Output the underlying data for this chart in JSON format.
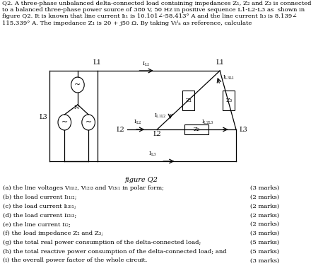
{
  "bg_color": "#ffffff",
  "text_color": "#000000",
  "figure_label": "figure Q2",
  "title_line1": "Q2. A three-phase unbalanced delta-connected load containing impedances Z₁, Z₂ and Z₃ is connected",
  "title_line2": "to a balanced three-phase power source of 380 V, 50 Hz in positive sequence L1-L2-L3 as  shown in",
  "title_line3": "figure Q2. It is known that line current Iₗ₁ is 10.101∠-58.413° A and the line current Iₗ₃ is 8.139∠",
  "title_line4": "115.339° A. The impedance Z₁ is 20 + j50 Ω. By taking Vₗᴵₙ as reference, calculate",
  "questions": [
    [
      "(a) the line voltages Vₗ₁ₗ₂, Vₗ₂ₗ₃ and Vₗ₃ₗ₁ in polar form;",
      "(3 marks)"
    ],
    [
      "(b) the load current Iₗ₁ₗ₂;",
      "(2 marks)"
    ],
    [
      "(c) the load current Iₗ₃ₗ₁;",
      "(2 marks)"
    ],
    [
      "(d) the load current Iₗ₂ₗ₃;",
      "(2 marks)"
    ],
    [
      "(e) the line current Iₗ₂;",
      "(2 marks)"
    ],
    [
      "(f) the load impedance Z₂ and Z₃;",
      "(3 marks)"
    ],
    [
      "(g) the total real power consumption of the delta-connected load;",
      "(5 marks)"
    ],
    [
      "(h) the total reactive power consumption of the delta-connected load; and",
      "(5 marks)"
    ],
    [
      "(i) the overall power factor of the whole circuit.",
      "(3 marks)"
    ]
  ]
}
